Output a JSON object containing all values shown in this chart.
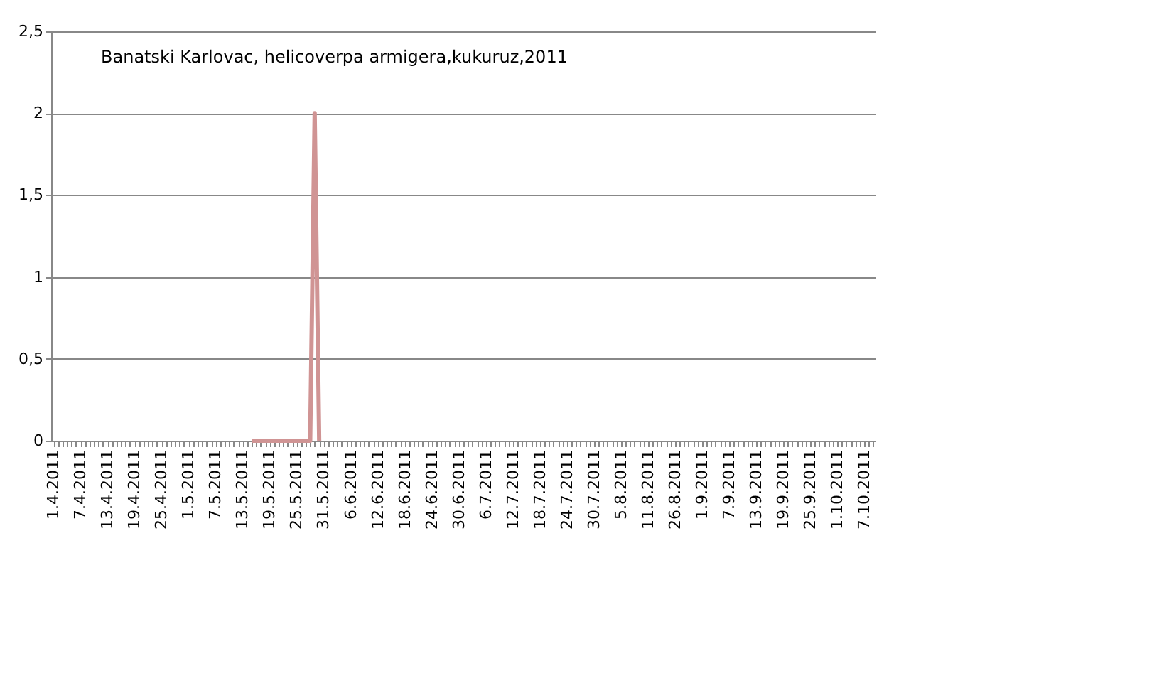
{
  "chart_data": {
    "type": "line",
    "title": "Banatski Karlovac, helicoverpa armigera,kukuruz,2011",
    "categories": [
      "1.4.2011",
      null,
      null,
      null,
      null,
      null,
      "7.4.2011",
      null,
      null,
      null,
      null,
      null,
      "13.4.2011",
      null,
      null,
      null,
      null,
      null,
      "19.4.2011",
      null,
      null,
      null,
      null,
      null,
      "25.4.2011",
      null,
      null,
      null,
      null,
      null,
      "1.5.2011",
      null,
      null,
      null,
      null,
      null,
      "7.5.2011",
      null,
      null,
      null,
      null,
      null,
      "13.5.2011",
      null,
      null,
      null,
      null,
      null,
      "19.5.2011",
      null,
      null,
      null,
      null,
      null,
      "25.5.2011",
      null,
      null,
      null,
      null,
      null,
      "31.5.2011",
      null,
      null,
      null,
      null,
      null,
      "6.6.2011",
      null,
      null,
      null,
      null,
      null,
      "12.6.2011",
      null,
      null,
      null,
      null,
      null,
      "18.6.2011",
      null,
      null,
      null,
      null,
      null,
      "24.6.2011",
      null,
      null,
      null,
      null,
      null,
      "30.6.2011",
      null,
      null,
      null,
      null,
      null,
      "6.7.2011",
      null,
      null,
      null,
      null,
      null,
      "12.7.2011",
      null,
      null,
      null,
      null,
      null,
      "18.7.2011",
      null,
      null,
      null,
      null,
      null,
      "24.7.2011",
      null,
      null,
      null,
      null,
      null,
      "30.7.2011",
      null,
      null,
      null,
      null,
      null,
      "5.8.2011",
      null,
      null,
      null,
      null,
      null,
      "11.8.2011",
      null,
      null,
      null,
      null,
      null,
      "26.8.2011",
      null,
      null,
      null,
      null,
      null,
      "1.9.2011",
      null,
      null,
      null,
      null,
      null,
      "7.9.2011",
      null,
      null,
      null,
      null,
      null,
      "13.9.2011",
      null,
      null,
      null,
      null,
      null,
      "19.9.2011",
      null,
      null,
      null,
      null,
      null,
      "25.9.2011",
      null,
      null,
      null,
      null,
      null,
      "1.10.2011",
      null,
      null,
      null,
      null,
      null,
      "7.10.2011",
      null,
      null
    ],
    "series": [
      {
        "color": "#d09494",
        "values": [
          null,
          null,
          null,
          null,
          null,
          null,
          null,
          null,
          null,
          null,
          null,
          null,
          null,
          null,
          null,
          null,
          null,
          null,
          null,
          null,
          null,
          null,
          null,
          null,
          null,
          null,
          null,
          null,
          null,
          null,
          null,
          null,
          null,
          null,
          null,
          null,
          null,
          null,
          null,
          null,
          null,
          null,
          null,
          null,
          0,
          0,
          0,
          0,
          0,
          0,
          0,
          0,
          0,
          0,
          0,
          0,
          0,
          0,
          2,
          0,
          null,
          null,
          null,
          null,
          null,
          null,
          null,
          null,
          null,
          null,
          null,
          null,
          null,
          null,
          null,
          null,
          null,
          null,
          null,
          null,
          null,
          null,
          null,
          null,
          null,
          null,
          null,
          null,
          null,
          null,
          null,
          null,
          null,
          null,
          null,
          null,
          null,
          null,
          null,
          null,
          null,
          null,
          null,
          null,
          null,
          null,
          null,
          null,
          null,
          null,
          null,
          null,
          null,
          null,
          null,
          null,
          null,
          null,
          null,
          null,
          null,
          null,
          null,
          null,
          null,
          null,
          null,
          null,
          null,
          null,
          null,
          null,
          null,
          null,
          null,
          null,
          null,
          null,
          null,
          null,
          null,
          null,
          null,
          null,
          null,
          null,
          null,
          null,
          null,
          null,
          null,
          null,
          null,
          null,
          null,
          null,
          null,
          null,
          null,
          null,
          null,
          null,
          null,
          null,
          null,
          null,
          null,
          null,
          null,
          null,
          null,
          null,
          null,
          null,
          null,
          null,
          null,
          null,
          null,
          null,
          null,
          null,
          null
        ]
      }
    ],
    "ylim": [
      0,
      2.5
    ],
    "yticks": [
      0,
      {
        "value": 0.5,
        "label": "0,5"
      },
      1,
      {
        "value": 1.5,
        "label": "1,5"
      },
      2,
      {
        "value": 2.5,
        "label": "2,5"
      }
    ],
    "grid": "y",
    "legend": false,
    "marker": "none",
    "line_style": "solid"
  }
}
